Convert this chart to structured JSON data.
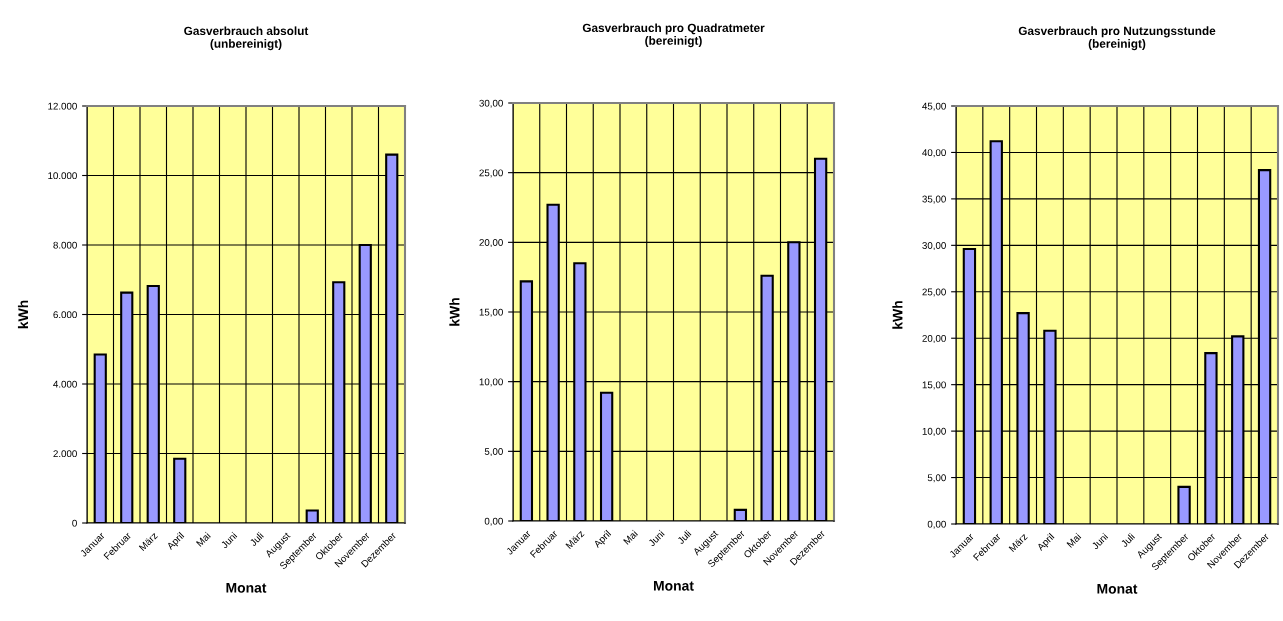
{
  "chart_data": [
    {
      "type": "bar",
      "title": "Gasverbrauch absolut\n(unbereinigt)",
      "xlabel": "Monat",
      "ylabel": "kWh",
      "categories": [
        "Januar",
        "Februar",
        "März",
        "April",
        "Mai",
        "Juni",
        "Juli",
        "August",
        "September",
        "Oktober",
        "November",
        "Dezember"
      ],
      "values": [
        4850,
        6630,
        6820,
        1850,
        0,
        0,
        0,
        0,
        360,
        6930,
        8000,
        10600
      ],
      "color": "#9999ff",
      "ylim": [
        0,
        12000
      ],
      "yticks": [
        0,
        {
          "value": 2000,
          "label": "2.000"
        },
        {
          "value": 4000,
          "label": "4.000"
        },
        {
          "value": 6000,
          "label": "6.000"
        },
        {
          "value": 8000,
          "label": "8.000"
        },
        {
          "value": 10000,
          "label": "10.000"
        },
        {
          "value": 12000,
          "label": "12.000"
        }
      ],
      "grid": true
    },
    {
      "type": "bar",
      "title": "Gasverbrauch pro Quadratmeter\n(bereinigt)",
      "xlabel": "Monat",
      "ylabel": "kWh",
      "categories": [
        "Januar",
        "Februar",
        "März",
        "April",
        "Mai",
        "Juni",
        "Juli",
        "August",
        "September",
        "Oktober",
        "November",
        "Dezember"
      ],
      "values": [
        17.2,
        22.7,
        18.5,
        9.2,
        0,
        0,
        0,
        0,
        0.8,
        17.6,
        20.0,
        26.0
      ],
      "color": "#9999ff",
      "ylim": [
        0,
        30
      ],
      "yticks": [
        {
          "value": 0,
          "label": "0,00"
        },
        {
          "value": 5,
          "label": "5,00"
        },
        {
          "value": 10,
          "label": "10,00"
        },
        {
          "value": 15,
          "label": "15,00"
        },
        {
          "value": 20,
          "label": "20,00"
        },
        {
          "value": 25,
          "label": "25,00"
        },
        {
          "value": 30,
          "label": "30,00"
        }
      ],
      "grid": true
    },
    {
      "type": "bar",
      "title": "Gasverbrauch pro Nutzungsstunde\n(bereinigt)",
      "xlabel": "Monat",
      "ylabel": "kWh",
      "categories": [
        "Januar",
        "Februar",
        "März",
        "April",
        "Mai",
        "Juni",
        "Juli",
        "August",
        "September",
        "Oktober",
        "November",
        "Dezember"
      ],
      "values": [
        29.6,
        41.2,
        22.7,
        20.8,
        0,
        0,
        0,
        0,
        4.0,
        18.4,
        20.2,
        38.1
      ],
      "color": "#9999ff",
      "ylim": [
        0,
        45
      ],
      "yticks": [
        {
          "value": 0,
          "label": "0,00"
        },
        {
          "value": 5,
          "label": "5,00"
        },
        {
          "value": 10,
          "label": "10,00"
        },
        {
          "value": 15,
          "label": "15,00"
        },
        {
          "value": 20,
          "label": "20,00"
        },
        {
          "value": 25,
          "label": "25,00"
        },
        {
          "value": 30,
          "label": "30,00"
        },
        {
          "value": 35,
          "label": "35,00"
        },
        {
          "value": 40,
          "label": "40,00"
        },
        {
          "value": 45,
          "label": "45,00"
        }
      ],
      "grid": true
    }
  ]
}
